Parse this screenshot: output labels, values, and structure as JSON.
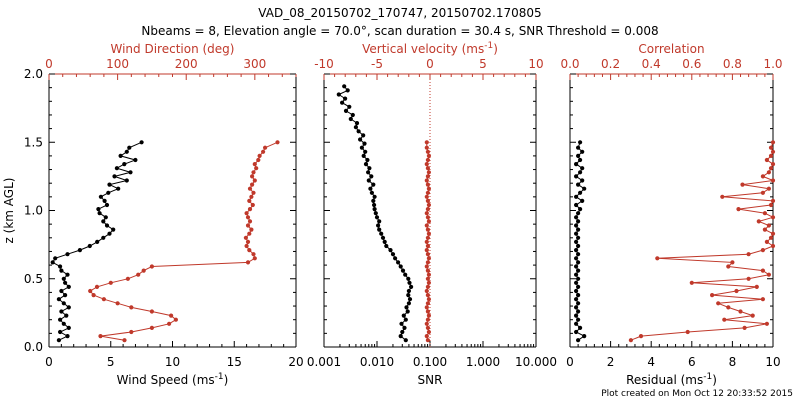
{
  "title_line1": "VAD_08_20150702_170747, 20150702.170805",
  "title_line2": "Nbeams = 8, Elevation angle = 70.0°, scan duration = 30.4 s, SNR Threshold = 0.008",
  "credit": "Plot created on Mon Oct 12 20:33:52 2015",
  "colors": {
    "black": "#000000",
    "red": "#c0392b"
  },
  "chart_data": [
    {
      "type": "line",
      "panel": "wind",
      "ylabel": "z (km AGL)",
      "ylim": [
        0,
        2.0
      ],
      "yticks": [
        "0.0",
        "0.5",
        "1.0",
        "1.5",
        "2.0"
      ],
      "bottom_axis": {
        "label": "Wind Speed (ms",
        "label_sup": "-1",
        "label_end": ")",
        "ticks": [
          "0",
          "5",
          "10",
          "15",
          "20"
        ],
        "lim": [
          0,
          20
        ]
      },
      "top_axis": {
        "label": "Wind Direction (deg)",
        "ticks": [
          "0",
          "100",
          "200",
          "300"
        ],
        "lim": [
          0,
          360
        ]
      },
      "series": [
        {
          "name": "Wind Speed",
          "axis": "bottom",
          "color": "#000000",
          "z": [
            0.05,
            0.08,
            0.11,
            0.14,
            0.17,
            0.2,
            0.23,
            0.26,
            0.29,
            0.32,
            0.35,
            0.38,
            0.41,
            0.44,
            0.47,
            0.5,
            0.53,
            0.56,
            0.59,
            0.62,
            0.65,
            0.68,
            0.71,
            0.74,
            0.77,
            0.8,
            0.83,
            0.86,
            0.89,
            0.92,
            0.95,
            0.98,
            1.01,
            1.04,
            1.07,
            1.1,
            1.13,
            1.16,
            1.19,
            1.22,
            1.25,
            1.28,
            1.31,
            1.34,
            1.37,
            1.4,
            1.43,
            1.46,
            1.5
          ],
          "values": [
            0.8,
            1.5,
            0.9,
            1.6,
            1.2,
            0.9,
            1.4,
            1.0,
            1.6,
            1.2,
            0.8,
            1.3,
            1.0,
            1.6,
            1.3,
            1.2,
            1.5,
            1.0,
            0.9,
            0.3,
            0.5,
            1.5,
            2.5,
            3.3,
            3.9,
            4.4,
            4.9,
            5.2,
            4.7,
            4.4,
            4.6,
            4.1,
            4.0,
            4.7,
            4.5,
            4.2,
            4.8,
            5.6,
            4.9,
            6.3,
            5.3,
            6.6,
            5.5,
            6.1,
            7.0,
            5.8,
            6.3,
            6.5,
            7.5
          ]
        },
        {
          "name": "Wind Direction",
          "axis": "top",
          "color": "#c0392b",
          "z": [
            0.05,
            0.08,
            0.11,
            0.14,
            0.17,
            0.2,
            0.23,
            0.26,
            0.29,
            0.32,
            0.35,
            0.38,
            0.41,
            0.44,
            0.47,
            0.5,
            0.53,
            0.56,
            0.59,
            0.62,
            0.65,
            0.68,
            0.71,
            0.74,
            0.77,
            0.8,
            0.83,
            0.86,
            0.89,
            0.92,
            0.95,
            0.98,
            1.01,
            1.04,
            1.07,
            1.1,
            1.13,
            1.16,
            1.19,
            1.22,
            1.25,
            1.28,
            1.31,
            1.34,
            1.37,
            1.4,
            1.43,
            1.46,
            1.5
          ],
          "values": [
            110,
            75,
            120,
            150,
            175,
            185,
            178,
            150,
            120,
            100,
            80,
            65,
            60,
            70,
            90,
            115,
            130,
            138,
            150,
            290,
            300,
            298,
            292,
            288,
            290,
            287,
            292,
            295,
            290,
            293,
            290,
            288,
            293,
            297,
            292,
            295,
            298,
            293,
            296,
            300,
            296,
            298,
            302,
            300,
            305,
            307,
            312,
            315,
            333
          ]
        }
      ]
    },
    {
      "type": "line",
      "panel": "snr_w",
      "ylim": [
        0,
        2.0
      ],
      "bottom_axis": {
        "label": "SNR",
        "scale": "log",
        "ticks": [
          "0.001",
          "0.010",
          "0.100",
          "1.000",
          "10.000"
        ],
        "lim": [
          0.001,
          10
        ]
      },
      "top_axis": {
        "label": "Vertical velocity (ms",
        "label_sup": "-1",
        "label_end": ")",
        "ticks": [
          "-10",
          "-5",
          "0",
          "5",
          "10"
        ],
        "lim": [
          -10,
          10
        ]
      },
      "series": [
        {
          "name": "SNR",
          "axis": "bottom",
          "color": "#000000",
          "z": [
            0.05,
            0.08,
            0.11,
            0.14,
            0.17,
            0.2,
            0.23,
            0.26,
            0.29,
            0.32,
            0.35,
            0.38,
            0.41,
            0.44,
            0.47,
            0.5,
            0.53,
            0.56,
            0.59,
            0.62,
            0.65,
            0.68,
            0.71,
            0.74,
            0.77,
            0.8,
            0.83,
            0.86,
            0.89,
            0.92,
            0.95,
            0.98,
            1.01,
            1.04,
            1.07,
            1.1,
            1.13,
            1.16,
            1.19,
            1.22,
            1.25,
            1.28,
            1.31,
            1.34,
            1.37,
            1.4,
            1.43,
            1.46,
            1.49,
            1.52,
            1.55,
            1.58,
            1.61,
            1.64,
            1.67,
            1.7,
            1.73,
            1.76,
            1.79,
            1.82,
            1.85,
            1.88,
            1.91
          ],
          "values": [
            0.035,
            0.028,
            0.03,
            0.033,
            0.029,
            0.035,
            0.032,
            0.038,
            0.036,
            0.04,
            0.042,
            0.039,
            0.04,
            0.044,
            0.041,
            0.039,
            0.034,
            0.031,
            0.028,
            0.025,
            0.022,
            0.02,
            0.018,
            0.015,
            0.014,
            0.013,
            0.012,
            0.011,
            0.0105,
            0.011,
            0.01,
            0.0095,
            0.009,
            0.0088,
            0.0085,
            0.009,
            0.008,
            0.0075,
            0.0085,
            0.007,
            0.0078,
            0.0068,
            0.0072,
            0.0062,
            0.0066,
            0.0056,
            0.006,
            0.0052,
            0.0058,
            0.0048,
            0.0055,
            0.0045,
            0.004,
            0.0042,
            0.0032,
            0.0035,
            0.0026,
            0.003,
            0.0022,
            0.0025,
            0.0019,
            0.0028,
            0.0024
          ]
        },
        {
          "name": "Vertical velocity",
          "axis": "top",
          "color": "#c0392b",
          "z": [
            0.05,
            0.08,
            0.11,
            0.14,
            0.17,
            0.2,
            0.23,
            0.26,
            0.29,
            0.32,
            0.35,
            0.38,
            0.41,
            0.44,
            0.47,
            0.5,
            0.53,
            0.56,
            0.59,
            0.62,
            0.65,
            0.68,
            0.71,
            0.74,
            0.77,
            0.8,
            0.83,
            0.86,
            0.89,
            0.92,
            0.95,
            0.98,
            1.01,
            1.04,
            1.07,
            1.1,
            1.13,
            1.16,
            1.19,
            1.22,
            1.25,
            1.28,
            1.31,
            1.34,
            1.37,
            1.4,
            1.43,
            1.46,
            1.5
          ],
          "values": [
            -0.2,
            -0.3,
            -0.1,
            -0.2,
            -0.3,
            -0.2,
            -0.1,
            -0.2,
            -0.3,
            -0.2,
            -0.1,
            -0.2,
            -0.3,
            -0.2,
            -0.1,
            -0.2,
            -0.1,
            -0.2,
            -0.3,
            -0.2,
            -0.1,
            -0.2,
            -0.3,
            -0.2,
            -0.3,
            -0.2,
            -0.1,
            -0.2,
            -0.3,
            -0.1,
            -0.2,
            -0.3,
            -0.2,
            -0.1,
            -0.2,
            -0.3,
            -0.2,
            -0.1,
            -0.2,
            -0.3,
            -0.2,
            -0.1,
            -0.2,
            -0.3,
            -0.2,
            -0.1,
            -0.2,
            -0.3,
            -0.3
          ]
        }
      ],
      "reference_line": {
        "axis": "top",
        "value": 0,
        "style": "dotted",
        "color": "#c0392b"
      }
    },
    {
      "type": "line",
      "panel": "residual_corr",
      "ylim": [
        0,
        2.0
      ],
      "bottom_axis": {
        "label": "Residual (ms",
        "label_sup": "-1",
        "label_end": ")",
        "ticks": [
          "0",
          "2",
          "4",
          "6",
          "8",
          "10"
        ],
        "lim": [
          0,
          10
        ]
      },
      "top_axis": {
        "label": "Correlation",
        "ticks": [
          "0.0",
          "0.2",
          "0.4",
          "0.6",
          "0.8",
          "1.0"
        ],
        "lim": [
          0,
          1
        ]
      },
      "series": [
        {
          "name": "Residual",
          "axis": "bottom",
          "color": "#000000",
          "z": [
            0.05,
            0.08,
            0.11,
            0.14,
            0.17,
            0.2,
            0.23,
            0.26,
            0.29,
            0.32,
            0.35,
            0.38,
            0.41,
            0.44,
            0.47,
            0.5,
            0.53,
            0.56,
            0.59,
            0.62,
            0.65,
            0.68,
            0.71,
            0.74,
            0.77,
            0.8,
            0.83,
            0.86,
            0.89,
            0.92,
            0.95,
            0.98,
            1.01,
            1.04,
            1.07,
            1.1,
            1.13,
            1.16,
            1.19,
            1.22,
            1.25,
            1.28,
            1.31,
            1.34,
            1.37,
            1.4,
            1.43,
            1.46,
            1.5
          ],
          "values": [
            0.4,
            0.7,
            0.3,
            0.5,
            0.3,
            0.4,
            0.3,
            0.4,
            0.3,
            0.4,
            0.3,
            0.4,
            0.3,
            0.4,
            0.3,
            0.4,
            0.3,
            0.4,
            0.3,
            0.4,
            0.3,
            0.4,
            0.3,
            0.4,
            0.3,
            0.4,
            0.3,
            0.4,
            0.3,
            0.4,
            0.3,
            0.4,
            0.5,
            0.3,
            0.6,
            0.3,
            0.5,
            0.7,
            0.4,
            0.6,
            0.3,
            0.5,
            0.6,
            0.3,
            0.5,
            0.4,
            0.6,
            0.4,
            0.5
          ]
        },
        {
          "name": "Correlation",
          "axis": "top",
          "color": "#c0392b",
          "z": [
            0.05,
            0.08,
            0.11,
            0.14,
            0.17,
            0.2,
            0.23,
            0.26,
            0.29,
            0.32,
            0.35,
            0.38,
            0.41,
            0.44,
            0.47,
            0.5,
            0.53,
            0.56,
            0.59,
            0.62,
            0.65,
            0.68,
            0.71,
            0.74,
            0.77,
            0.8,
            0.83,
            0.86,
            0.89,
            0.92,
            0.95,
            0.98,
            1.01,
            1.04,
            1.07,
            1.1,
            1.13,
            1.16,
            1.19,
            1.22,
            1.25,
            1.28,
            1.31,
            1.34,
            1.37,
            1.4,
            1.43,
            1.46,
            1.5
          ],
          "values": [
            0.3,
            0.35,
            0.58,
            0.86,
            0.97,
            0.76,
            0.9,
            0.84,
            0.78,
            0.73,
            0.95,
            0.7,
            0.82,
            0.92,
            0.6,
            0.88,
            0.98,
            0.95,
            0.78,
            0.8,
            0.43,
            0.88,
            0.95,
            1.0,
            0.97,
            0.99,
            1.0,
            0.96,
            0.98,
            0.93,
            1.0,
            0.96,
            0.83,
            0.99,
            1.0,
            0.75,
            0.95,
            0.98,
            0.85,
            1.0,
            0.95,
            0.98,
            0.99,
            1.0,
            0.97,
            0.99,
            1.0,
            0.99,
            1.0
          ]
        }
      ]
    }
  ]
}
